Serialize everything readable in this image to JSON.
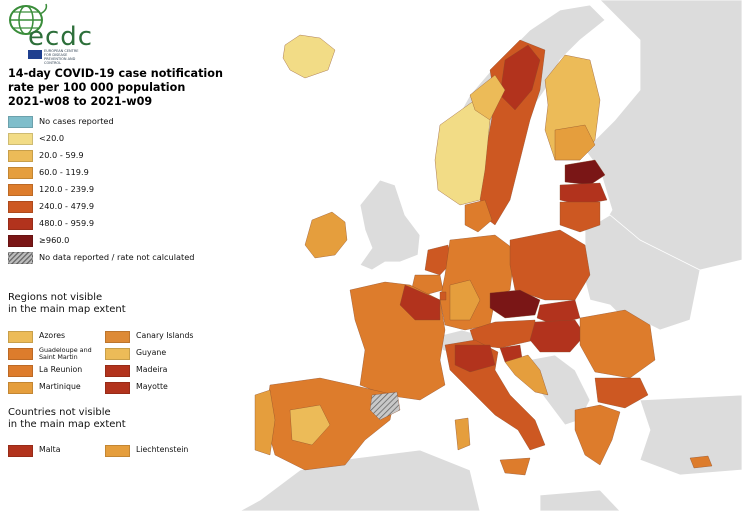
{
  "header": {
    "logo_text": "ecdc",
    "agency_text": "EUROPEAN CENTRE FOR DISEASE PREVENTION AND CONTROL"
  },
  "title_lines": [
    "14-day COVID-19 case notification",
    "rate per 100 000 population",
    "2021-w08 to 2021-w09"
  ],
  "legend": [
    {
      "label": "No cases reported",
      "color": "#7fbecb"
    },
    {
      "label": "<20.0",
      "color": "#f2dc86"
    },
    {
      "label": "20.0 - 59.9",
      "color": "#ecbb58"
    },
    {
      "label": "60.0 - 119.9",
      "color": "#e59e3d"
    },
    {
      "label": "120.0 - 239.9",
      "color": "#dd7c2c"
    },
    {
      "label": "240.0 - 479.9",
      "color": "#cd5822"
    },
    {
      "label": "480.0 - 959.9",
      "color": "#b2331d"
    },
    {
      "label": "≥960.0",
      "color": "#7a1616"
    },
    {
      "label": "No data reported / rate not calculated",
      "color": "hatch"
    }
  ],
  "regions_title": [
    "Regions not visible",
    "in the main map extent"
  ],
  "regions": [
    {
      "label": "Azores",
      "color": "#ecbb58"
    },
    {
      "label": "Canary Islands",
      "color": "#dd8a36"
    },
    {
      "label": "Guadeloupe and Saint Martin",
      "color": "#dd7c2c"
    },
    {
      "label": "Guyane",
      "color": "#ecbb58"
    },
    {
      "label": "La Reunion",
      "color": "#dd7c2c"
    },
    {
      "label": "Madeira",
      "color": "#b2331d"
    },
    {
      "label": "Martinique",
      "color": "#e59e3d"
    },
    {
      "label": "Mayotte",
      "color": "#b2331d"
    }
  ],
  "countries_title": [
    "Countries not visible",
    "in the main map extent"
  ],
  "countries": [
    {
      "label": "Malta",
      "color": "#b2331d"
    },
    {
      "label": "Liechtenstein",
      "color": "#e59e3d"
    }
  ],
  "map_colors": {
    "sea": "#ffffff",
    "non_eu": "#dcdcdc",
    "border": "#ffffff"
  }
}
